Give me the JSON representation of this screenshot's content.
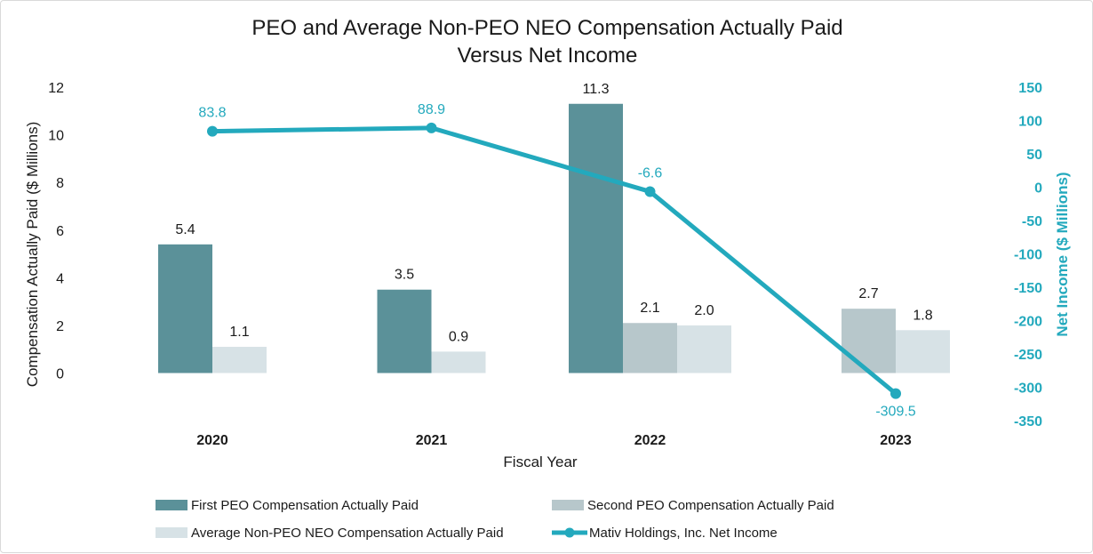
{
  "chart_data": {
    "type": "bar",
    "title_lines": [
      "PEO and Average Non-PEO NEO Compensation Actually Paid",
      "Versus Net Income"
    ],
    "xlabel": "Fiscal Year",
    "ylabel": "Compensation Actually Paid ($ Millions)",
    "y2label": "Net Income ($ Millions)",
    "categories": [
      "2020",
      "2021",
      "2022",
      "2023"
    ],
    "ylim": [
      0,
      12
    ],
    "yticks": [
      0,
      2,
      4,
      6,
      8,
      10,
      12
    ],
    "y2lim": [
      -350,
      150
    ],
    "y2ticks": [
      150,
      100,
      50,
      0,
      -50,
      -100,
      -150,
      -200,
      -250,
      -300,
      -350
    ],
    "series": [
      {
        "name": "First PEO Compensation Actually Paid",
        "kind": "bar",
        "color": "#5b9199",
        "values": [
          5.4,
          3.5,
          11.3,
          null
        ],
        "labels": [
          "5.4",
          "3.5",
          "11.3",
          ""
        ]
      },
      {
        "name": "Second PEO Compensation Actually Paid",
        "kind": "bar",
        "color": "#b7c7cb",
        "values": [
          null,
          null,
          2.1,
          2.7
        ],
        "labels": [
          "",
          "",
          "2.1",
          "2.7"
        ]
      },
      {
        "name": "Average Non-PEO NEO Compensation Actually Paid",
        "kind": "bar",
        "color": "#d7e2e6",
        "values": [
          1.1,
          0.9,
          2.0,
          1.8
        ],
        "labels": [
          "1.1",
          "0.9",
          "2.0",
          "1.8"
        ]
      },
      {
        "name": "Mativ Holdings, Inc.  Net Income",
        "kind": "line",
        "axis": "right",
        "color": "#23a9bd",
        "values": [
          83.8,
          88.9,
          -6.6,
          -309.5
        ],
        "labels": [
          "83.8",
          "88.9",
          "-6.6",
          "-309.5"
        ]
      }
    ]
  }
}
